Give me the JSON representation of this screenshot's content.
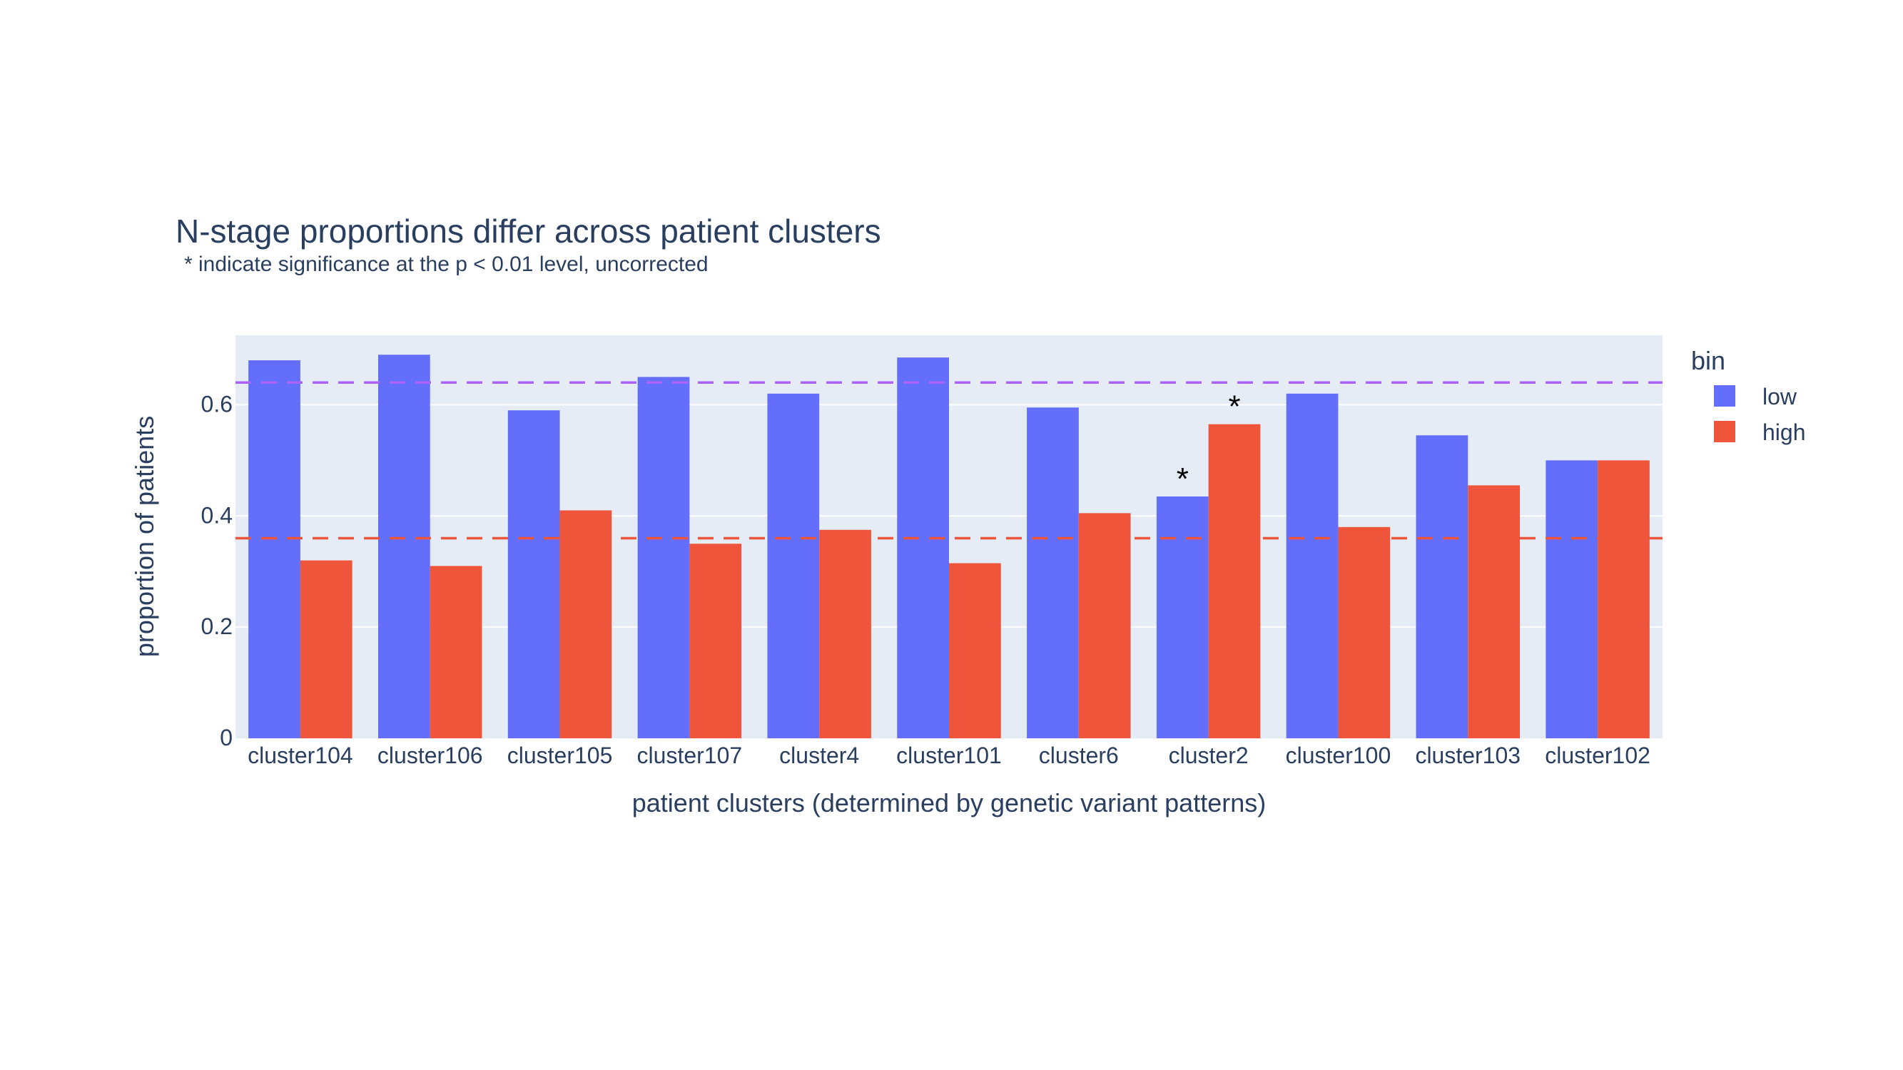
{
  "chart_data": {
    "type": "bar",
    "title": "N-stage proportions differ across patient clusters",
    "subtitle": "* indicate significance at the p < 0.01 level, uncorrected",
    "xlabel": "patient clusters (determined by genetic variant patterns)",
    "ylabel": "proportion of patients",
    "ylim": [
      0,
      0.725
    ],
    "yticks": [
      0,
      0.2,
      0.4,
      0.6
    ],
    "ytick_labels": [
      "0",
      "0.2",
      "0.4",
      "0.6"
    ],
    "grid": true,
    "legend": {
      "title": "bin",
      "placement": "right"
    },
    "categories": [
      "cluster104",
      "cluster106",
      "cluster105",
      "cluster107",
      "cluster4",
      "cluster101",
      "cluster6",
      "cluster2",
      "cluster100",
      "cluster103",
      "cluster102"
    ],
    "series": [
      {
        "name": "low",
        "color": "#636efa",
        "values": [
          0.68,
          0.69,
          0.59,
          0.65,
          0.62,
          0.685,
          0.595,
          0.435,
          0.62,
          0.545,
          0.5
        ]
      },
      {
        "name": "high",
        "color": "#ef553b",
        "values": [
          0.32,
          0.31,
          0.41,
          0.35,
          0.375,
          0.315,
          0.405,
          0.565,
          0.38,
          0.455,
          0.5
        ]
      }
    ],
    "reference_lines": [
      {
        "y": 0.64,
        "color": "#ab63fa",
        "style": "dashed"
      },
      {
        "y": 0.36,
        "color": "#ef553b",
        "style": "dashed"
      }
    ],
    "annotations": [
      {
        "category": "cluster2",
        "series": "low",
        "text": "*"
      },
      {
        "category": "cluster2",
        "series": "high",
        "text": "*"
      }
    ],
    "plot_background": "#e5ecf6"
  }
}
